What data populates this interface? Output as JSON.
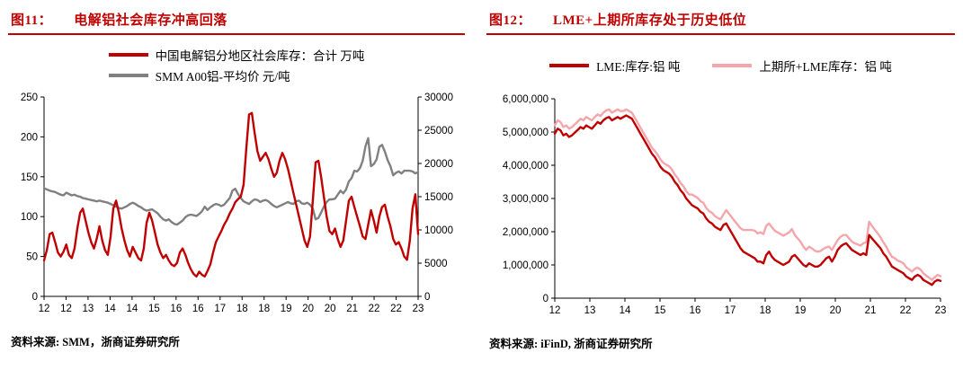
{
  "accent_color": "#c00000",
  "figures": [
    {
      "fig_label": "图11：",
      "title": "电解铝社会库存冲高回落",
      "source_text": "资料来源: SMM，浙商证券研究所"
    },
    {
      "fig_label": "图12：",
      "title": "LME+上期所库存处于历史低位",
      "source_text": "资料来源: iFinD, 浙商证券研究所"
    }
  ],
  "chart_data": [
    {
      "type": "line",
      "title": "电解铝社会库存冲高回落",
      "x_frequency": "monthly",
      "x_start": "2012-01",
      "x_end": "2023-04",
      "x_tick_labels": [
        "12",
        "12",
        "13",
        "14",
        "14",
        "15",
        "16",
        "16",
        "17",
        "18",
        "18",
        "19",
        "20",
        "20",
        "21",
        "22",
        "22",
        "23"
      ],
      "grid": false,
      "legend_position": "top",
      "y_left": {
        "min": 0,
        "max": 250,
        "step": 50,
        "format": "plain",
        "tick_labels": [
          "0",
          "50",
          "100",
          "150",
          "200",
          "250"
        ]
      },
      "y_right": {
        "min": 0,
        "max": 30000,
        "step": 5000,
        "format": "plain",
        "tick_labels": [
          "0",
          "5000",
          "10000",
          "15000",
          "20000",
          "25000",
          "30000"
        ]
      },
      "series": [
        {
          "name": "中国电解铝分地区社会库存：合计 万吨",
          "axis": "left",
          "color": "#c00000",
          "width": 2.4,
          "values": [
            45,
            58,
            78,
            80,
            68,
            55,
            50,
            56,
            65,
            52,
            48,
            60,
            85,
            105,
            110,
            95,
            80,
            68,
            60,
            72,
            88,
            70,
            58,
            52,
            75,
            110,
            120,
            105,
            85,
            70,
            58,
            50,
            62,
            55,
            48,
            45,
            60,
            92,
            105,
            95,
            80,
            65,
            55,
            48,
            52,
            45,
            40,
            38,
            42,
            55,
            60,
            52,
            42,
            34,
            28,
            25,
            31,
            27,
            25,
            32,
            40,
            55,
            68,
            75,
            82,
            90,
            96,
            104,
            110,
            118,
            122,
            125,
            140,
            185,
            228,
            230,
            205,
            182,
            170,
            175,
            180,
            172,
            160,
            150,
            155,
            170,
            180,
            172,
            160,
            145,
            130,
            115,
            100,
            85,
            70,
            62,
            75,
            120,
            168,
            170,
            150,
            125,
            100,
            82,
            78,
            85,
            72,
            62,
            70,
            95,
            120,
            125,
            112,
            100,
            88,
            75,
            72,
            90,
            108,
            95,
            80,
            100,
            112,
            115,
            100,
            88,
            72,
            65,
            68,
            60,
            50,
            46,
            70,
            110,
            128,
            78
          ]
        },
        {
          "name": "SMM A00铝-平均价 元/吨",
          "axis": "right",
          "color": "#808080",
          "width": 2.4,
          "values": [
            16300,
            16100,
            15900,
            15800,
            15700,
            15500,
            15300,
            15200,
            15600,
            15400,
            15200,
            15300,
            15100,
            15000,
            14800,
            14700,
            14600,
            14500,
            14400,
            14300,
            14400,
            14300,
            14200,
            14100,
            13900,
            13700,
            13500,
            13300,
            13200,
            13400,
            13600,
            13900,
            14100,
            13900,
            13600,
            13400,
            13100,
            12900,
            13000,
            13100,
            12800,
            12500,
            12000,
            11600,
            11400,
            11600,
            11200,
            10900,
            10800,
            11100,
            11400,
            11900,
            12200,
            12300,
            12200,
            12100,
            12400,
            12800,
            13500,
            13000,
            13400,
            13700,
            13900,
            13800,
            13600,
            13800,
            14300,
            14800,
            15900,
            16200,
            15400,
            14800,
            14300,
            14100,
            13900,
            14300,
            14600,
            14500,
            14200,
            14400,
            14500,
            14300,
            13900,
            13600,
            13400,
            13600,
            13800,
            14000,
            14200,
            14000,
            13900,
            14300,
            14400,
            14000,
            13900,
            14100,
            13800,
            13200,
            11600,
            11800,
            12600,
            13500,
            14200,
            14600,
            14600,
            14700,
            15300,
            15900,
            15500,
            16100,
            17300,
            17800,
            18900,
            18800,
            19300,
            20400,
            22600,
            23800,
            19600,
            19900,
            20600,
            22500,
            22800,
            21800,
            20500,
            19600,
            18200,
            18600,
            18800,
            18500,
            18900,
            18900,
            18900,
            18800,
            18500,
            18700
          ]
        }
      ]
    },
    {
      "type": "line",
      "title": "LME+上期所库存处于历史低位",
      "x_frequency": "monthly",
      "x_start": "2012-01",
      "x_end": "2023-04",
      "x_tick_labels": [
        "12",
        "13",
        "14",
        "15",
        "16",
        "17",
        "18",
        "19",
        "20",
        "21",
        "22",
        "23"
      ],
      "grid": false,
      "legend_position": "top",
      "y_left": {
        "min": 0,
        "max": 6000000,
        "step": 1000000,
        "format": "comma",
        "tick_labels": [
          "0",
          "1,000,000",
          "2,000,000",
          "3,000,000",
          "4,000,000",
          "5,000,000",
          "6,000,000"
        ]
      },
      "series": [
        {
          "name": "LME:库存:铝 吨",
          "axis": "left",
          "color": "#c00000",
          "width": 2.4,
          "values": [
            4950000,
            5100000,
            5050000,
            4900000,
            4950000,
            4850000,
            4900000,
            4980000,
            5060000,
            5150000,
            5100000,
            5200000,
            5150000,
            5100000,
            5200000,
            5300000,
            5250000,
            5350000,
            5420000,
            5450000,
            5350000,
            5400000,
            5450000,
            5400000,
            5450000,
            5500000,
            5450000,
            5400000,
            5250000,
            5100000,
            4950000,
            4800000,
            4650000,
            4500000,
            4350000,
            4250000,
            4100000,
            3950000,
            3850000,
            3800000,
            3750000,
            3650000,
            3500000,
            3400000,
            3250000,
            3150000,
            3000000,
            2900000,
            2800000,
            2750000,
            2700000,
            2600000,
            2550000,
            2400000,
            2300000,
            2250000,
            2150000,
            2100000,
            2050000,
            2200000,
            2250000,
            2100000,
            1950000,
            1800000,
            1650000,
            1500000,
            1400000,
            1350000,
            1300000,
            1250000,
            1200000,
            1100000,
            1100000,
            1050000,
            1300000,
            1400000,
            1250000,
            1150000,
            1100000,
            1050000,
            1000000,
            1050000,
            1100000,
            1250000,
            1300000,
            1200000,
            1100000,
            1000000,
            950000,
            1050000,
            1000000,
            950000,
            950000,
            1000000,
            1100000,
            1200000,
            1250000,
            1100000,
            1250000,
            1450000,
            1550000,
            1620000,
            1650000,
            1550000,
            1450000,
            1400000,
            1350000,
            1300000,
            1350000,
            1300000,
            1900000,
            1800000,
            1700000,
            1600000,
            1500000,
            1350000,
            1250000,
            1100000,
            950000,
            900000,
            850000,
            800000,
            750000,
            650000,
            600000,
            550000,
            650000,
            700000,
            650000,
            550000,
            500000,
            450000,
            400000,
            500000,
            550000,
            520000
          ]
        },
        {
          "name": "上期所+LME库存：铝 吨",
          "axis": "left",
          "color": "#f4a6ac",
          "width": 2.4,
          "values": [
            5200000,
            5350000,
            5300000,
            5150000,
            5200000,
            5100000,
            5150000,
            5230000,
            5310000,
            5400000,
            5350000,
            5450000,
            5400000,
            5350000,
            5450000,
            5530000,
            5480000,
            5580000,
            5650000,
            5680000,
            5580000,
            5630000,
            5680000,
            5630000,
            5630000,
            5680000,
            5630000,
            5580000,
            5430000,
            5280000,
            5130000,
            4980000,
            4830000,
            4680000,
            4530000,
            4430000,
            4320000,
            4170000,
            4070000,
            4020000,
            3970000,
            3870000,
            3720000,
            3620000,
            3470000,
            3370000,
            3220000,
            3120000,
            3120000,
            3070000,
            3020000,
            2920000,
            2870000,
            2720000,
            2620000,
            2570000,
            2470000,
            2420000,
            2370000,
            2520000,
            2650000,
            2540000,
            2430000,
            2320000,
            2210000,
            2100000,
            2050000,
            2050000,
            2050000,
            2050000,
            2030000,
            1950000,
            1980000,
            1930000,
            2180000,
            2250000,
            2130000,
            2030000,
            1980000,
            1930000,
            1880000,
            1930000,
            1980000,
            2080000,
            1900000,
            1800000,
            1700000,
            1550000,
            1450000,
            1550000,
            1500000,
            1430000,
            1400000,
            1420000,
            1480000,
            1530000,
            1550000,
            1450000,
            1600000,
            1750000,
            1850000,
            1900000,
            1900000,
            1800000,
            1700000,
            1650000,
            1620000,
            1580000,
            1650000,
            1680000,
            2300000,
            2180000,
            2060000,
            1950000,
            1830000,
            1680000,
            1550000,
            1380000,
            1250000,
            1200000,
            1130000,
            1100000,
            1050000,
            930000,
            870000,
            800000,
            880000,
            920000,
            860000,
            750000,
            680000,
            620000,
            550000,
            630000,
            700000,
            660000
          ]
        }
      ]
    }
  ]
}
